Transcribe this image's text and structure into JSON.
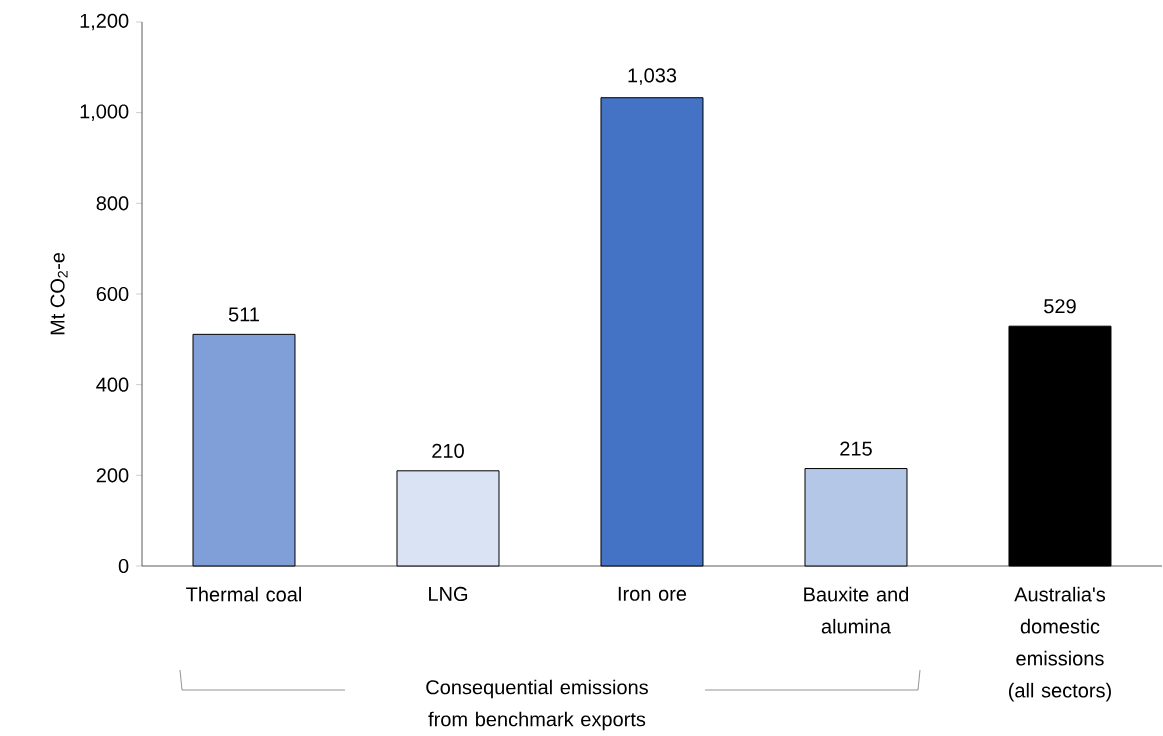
{
  "chart_data": {
    "type": "bar",
    "ylabel": "Mt CO$_{2}$-e",
    "categories": [
      "Thermal coal",
      "LNG",
      "Iron ore",
      "Bauxite and alumina",
      "Australia's domestic emissions (all sectors)"
    ],
    "values": [
      511,
      210,
      1033,
      215,
      529
    ],
    "value_labels": [
      "511",
      "210",
      "1,033",
      "215",
      "529"
    ],
    "colors": [
      "#809ed8",
      "#dae3f3",
      "#4472c4",
      "#b4c7e7",
      "#000000"
    ],
    "ylim": [
      0,
      1200
    ],
    "yticks": [
      0,
      200,
      400,
      600,
      800,
      {
        "value": 1000,
        "label": "1,000"
      },
      {
        "value": 1200,
        "label": "1,200"
      }
    ],
    "grid": false,
    "annotations": [
      "Consequential emissions from benchmark exports"
    ]
  }
}
